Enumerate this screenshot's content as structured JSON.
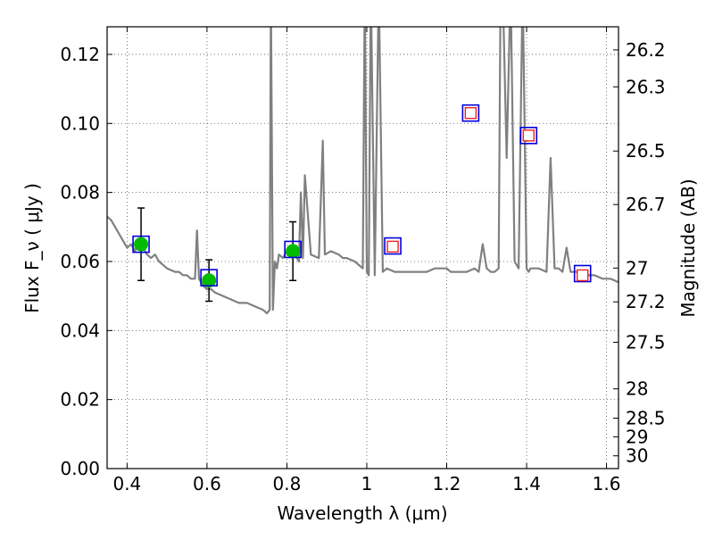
{
  "chart_data": {
    "type": "scatter",
    "title": "",
    "xlabel": "Wavelength  λ (μm)",
    "ylabel": "Flux  F_ν  ( μJy )",
    "ylabel_right": "Magnitude (AB)",
    "xlim": [
      0.35,
      1.63
    ],
    "ylim": [
      0.0,
      0.128
    ],
    "grid": true,
    "x_ticks": [
      0.4,
      0.6,
      0.8,
      1.0,
      1.2,
      1.4,
      1.6
    ],
    "x_tick_labels": [
      "0.4",
      "0.6",
      "0.8",
      "1",
      "1.2",
      "1.4",
      "1.6"
    ],
    "y_ticks": [
      0.0,
      0.02,
      0.04,
      0.06,
      0.08,
      0.1,
      0.12
    ],
    "y_tick_labels": [
      "0.00",
      "0.02",
      "0.04",
      "0.06",
      "0.08",
      "0.10",
      "0.12"
    ],
    "right_ticks": [
      {
        "label": "26.2",
        "flux": 0.1213
      },
      {
        "label": "26.3",
        "flux": 0.1106
      },
      {
        "label": "26.5",
        "flux": 0.092
      },
      {
        "label": "26.7",
        "flux": 0.0765
      },
      {
        "label": "27",
        "flux": 0.0581
      },
      {
        "label": "27.2",
        "flux": 0.0483
      },
      {
        "label": "27.5",
        "flux": 0.0366
      },
      {
        "label": "28",
        "flux": 0.0231
      },
      {
        "label": "28.5",
        "flux": 0.0146
      },
      {
        "label": "29",
        "flux": 0.0092
      },
      {
        "label": "30",
        "flux": 0.0037
      }
    ],
    "colors": {
      "spectrum": "#808080",
      "observed_marker": "#00bb00",
      "model_box": "#0000dd",
      "upper_limit_marker": "#ee2222",
      "errorbar": "#000000",
      "grid": "#555555"
    },
    "series": [
      {
        "kind": "spectrum",
        "x": [
          0.35,
          0.36,
          0.37,
          0.38,
          0.39,
          0.4,
          0.41,
          0.42,
          0.43,
          0.44,
          0.45,
          0.46,
          0.47,
          0.48,
          0.49,
          0.5,
          0.51,
          0.52,
          0.53,
          0.54,
          0.55,
          0.56,
          0.57,
          0.575,
          0.58,
          0.59,
          0.6,
          0.61,
          0.62,
          0.64,
          0.66,
          0.68,
          0.7,
          0.72,
          0.74,
          0.75,
          0.757,
          0.76,
          0.765,
          0.77,
          0.775,
          0.78,
          0.79,
          0.8,
          0.81,
          0.82,
          0.83,
          0.835,
          0.84,
          0.845,
          0.86,
          0.88,
          0.89,
          0.895,
          0.91,
          0.93,
          0.94,
          0.95,
          0.97,
          0.99,
          0.995,
          1.0,
          1.005,
          1.01,
          1.02,
          1.03,
          1.04,
          1.05,
          1.07,
          1.09,
          1.11,
          1.13,
          1.15,
          1.17,
          1.19,
          1.2,
          1.21,
          1.23,
          1.25,
          1.27,
          1.28,
          1.29,
          1.3,
          1.31,
          1.32,
          1.33,
          1.335,
          1.34,
          1.35,
          1.36,
          1.37,
          1.38,
          1.39,
          1.4,
          1.405,
          1.41,
          1.43,
          1.45,
          1.46,
          1.47,
          1.48,
          1.49,
          1.5,
          1.51,
          1.53,
          1.55,
          1.57,
          1.59,
          1.61,
          1.63
        ],
        "y": [
          0.073,
          0.072,
          0.07,
          0.068,
          0.066,
          0.064,
          0.065,
          0.063,
          0.066,
          0.064,
          0.062,
          0.061,
          0.062,
          0.06,
          0.059,
          0.058,
          0.0575,
          0.057,
          0.057,
          0.056,
          0.056,
          0.055,
          0.055,
          0.069,
          0.055,
          0.053,
          0.052,
          0.052,
          0.051,
          0.05,
          0.049,
          0.048,
          0.048,
          0.047,
          0.046,
          0.045,
          0.046,
          0.14,
          0.046,
          0.06,
          0.058,
          0.062,
          0.061,
          0.063,
          0.064,
          0.062,
          0.06,
          0.08,
          0.061,
          0.085,
          0.062,
          0.061,
          0.095,
          0.062,
          0.063,
          0.062,
          0.061,
          0.061,
          0.06,
          0.058,
          0.14,
          0.057,
          0.056,
          0.14,
          0.056,
          0.14,
          0.057,
          0.058,
          0.057,
          0.057,
          0.057,
          0.057,
          0.057,
          0.058,
          0.058,
          0.058,
          0.057,
          0.057,
          0.057,
          0.058,
          0.057,
          0.065,
          0.058,
          0.057,
          0.057,
          0.058,
          0.14,
          0.14,
          0.09,
          0.14,
          0.06,
          0.058,
          0.14,
          0.058,
          0.057,
          0.058,
          0.058,
          0.057,
          0.09,
          0.058,
          0.058,
          0.057,
          0.064,
          0.057,
          0.057,
          0.056,
          0.056,
          0.055,
          0.055,
          0.054
        ]
      },
      {
        "kind": "observed",
        "x": [
          0.435,
          0.605,
          0.815
        ],
        "y": [
          0.065,
          0.0545,
          0.063
        ],
        "yerr": [
          0.0105,
          0.006,
          0.0085
        ]
      },
      {
        "kind": "model",
        "x": [
          0.435,
          0.605,
          0.815,
          1.065,
          1.26,
          1.405,
          1.54
        ],
        "y": [
          0.065,
          0.0553,
          0.0635,
          0.0645,
          0.103,
          0.0965,
          0.0565
        ]
      },
      {
        "kind": "upper_limit",
        "x": [
          1.065,
          1.26,
          1.405,
          1.54
        ],
        "y": [
          0.0643,
          0.103,
          0.0965,
          0.056
        ]
      }
    ]
  }
}
